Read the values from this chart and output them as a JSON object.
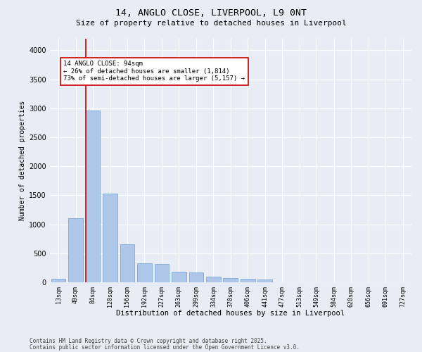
{
  "title1": "14, ANGLO CLOSE, LIVERPOOL, L9 0NT",
  "title2": "Size of property relative to detached houses in Liverpool",
  "xlabel": "Distribution of detached houses by size in Liverpool",
  "ylabel": "Number of detached properties",
  "categories": [
    "13sqm",
    "49sqm",
    "84sqm",
    "120sqm",
    "156sqm",
    "192sqm",
    "227sqm",
    "263sqm",
    "299sqm",
    "334sqm",
    "370sqm",
    "406sqm",
    "441sqm",
    "477sqm",
    "513sqm",
    "549sqm",
    "584sqm",
    "620sqm",
    "656sqm",
    "691sqm",
    "727sqm"
  ],
  "values": [
    55,
    1110,
    2960,
    1530,
    650,
    325,
    310,
    185,
    175,
    95,
    75,
    55,
    45,
    0,
    0,
    0,
    0,
    0,
    0,
    0,
    0
  ],
  "bar_color": "#aec6e8",
  "bar_edge_color": "#6aa0d4",
  "vline_color": "#cc0000",
  "annotation_text": "14 ANGLO CLOSE: 94sqm\n← 26% of detached houses are smaller (1,814)\n73% of semi-detached houses are larger (5,157) →",
  "annotation_box_color": "#ffffff",
  "annotation_box_edge_color": "#cc0000",
  "ylim": [
    0,
    4200
  ],
  "yticks": [
    0,
    500,
    1000,
    1500,
    2000,
    2500,
    3000,
    3500,
    4000
  ],
  "bg_color": "#e8edf5",
  "plot_bg_color": "#e8edf5",
  "grid_color": "#ffffff",
  "footer1": "Contains HM Land Registry data © Crown copyright and database right 2025.",
  "footer2": "Contains public sector information licensed under the Open Government Licence v3.0.",
  "title_fontsize": 9.5,
  "subtitle_fontsize": 8,
  "tick_fontsize": 6,
  "ylabel_fontsize": 7,
  "xlabel_fontsize": 7.5,
  "annotation_fontsize": 6.5,
  "footer_fontsize": 5.5
}
